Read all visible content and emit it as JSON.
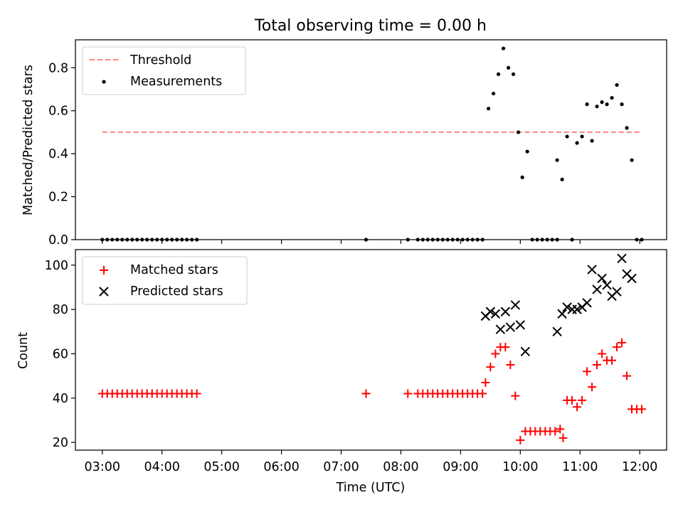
{
  "figure": {
    "title": "Total observing time = 0.00 h"
  },
  "chart_data": [
    {
      "type": "scatter",
      "panel": "top",
      "title": "Total observing time = 0.00 h",
      "xlabel": "",
      "ylabel": "Matched/Predicted stars",
      "xlim": [
        "02:33",
        "12:27"
      ],
      "ylim": [
        0,
        0.93
      ],
      "yticks": [
        0.0,
        0.2,
        0.4,
        0.6,
        0.8
      ],
      "ytick_labels": [
        "0.0",
        "0.2",
        "0.4",
        "0.6",
        "0.8"
      ],
      "xtick_labels_shown": false,
      "legend": {
        "placement": "upper-left",
        "entries": [
          "Threshold",
          "Measurements"
        ]
      },
      "threshold": {
        "name": "Threshold",
        "value": 0.5,
        "x_start": "03:00",
        "x_end": "12:00",
        "color": "#ff7f7f",
        "style": "dashed"
      },
      "series": [
        {
          "name": "Measurements",
          "marker": "dot",
          "color": "#000000",
          "points": [
            [
              "03:00",
              0
            ],
            [
              "03:05",
              0
            ],
            [
              "03:10",
              0
            ],
            [
              "03:15",
              0
            ],
            [
              "03:20",
              0
            ],
            [
              "03:25",
              0
            ],
            [
              "03:30",
              0
            ],
            [
              "03:35",
              0
            ],
            [
              "03:40",
              0
            ],
            [
              "03:45",
              0
            ],
            [
              "03:50",
              0
            ],
            [
              "03:55",
              0
            ],
            [
              "04:00",
              0
            ],
            [
              "04:05",
              0
            ],
            [
              "04:10",
              0
            ],
            [
              "04:15",
              0
            ],
            [
              "04:20",
              0
            ],
            [
              "04:25",
              0
            ],
            [
              "04:30",
              0
            ],
            [
              "04:35",
              0
            ],
            [
              "07:25",
              0
            ],
            [
              "08:07",
              0
            ],
            [
              "08:17",
              0
            ],
            [
              "08:22",
              0
            ],
            [
              "08:27",
              0
            ],
            [
              "08:32",
              0
            ],
            [
              "08:37",
              0
            ],
            [
              "08:42",
              0
            ],
            [
              "08:47",
              0
            ],
            [
              "08:52",
              0
            ],
            [
              "08:57",
              0
            ],
            [
              "09:02",
              0
            ],
            [
              "09:07",
              0
            ],
            [
              "09:12",
              0
            ],
            [
              "09:17",
              0
            ],
            [
              "09:22",
              0
            ],
            [
              "09:28",
              0.61
            ],
            [
              "09:33",
              0.68
            ],
            [
              "09:38",
              0.77
            ],
            [
              "09:43",
              0.89
            ],
            [
              "09:48",
              0.8
            ],
            [
              "09:53",
              0.77
            ],
            [
              "09:58",
              0.5
            ],
            [
              "10:02",
              0.29
            ],
            [
              "10:07",
              0.41
            ],
            [
              "10:12",
              0
            ],
            [
              "10:17",
              0
            ],
            [
              "10:22",
              0
            ],
            [
              "10:27",
              0
            ],
            [
              "10:32",
              0
            ],
            [
              "10:37",
              0
            ],
            [
              "10:37",
              0.37
            ],
            [
              "10:42",
              0.28
            ],
            [
              "10:47",
              0.48
            ],
            [
              "10:52",
              0
            ],
            [
              "10:57",
              0.45
            ],
            [
              "11:02",
              0.48
            ],
            [
              "11:07",
              0.63
            ],
            [
              "11:12",
              0.46
            ],
            [
              "11:17",
              0.62
            ],
            [
              "11:22",
              0.64
            ],
            [
              "11:27",
              0.63
            ],
            [
              "11:32",
              0.66
            ],
            [
              "11:37",
              0.72
            ],
            [
              "11:42",
              0.63
            ],
            [
              "11:47",
              0.52
            ],
            [
              "11:52",
              0.37
            ],
            [
              "11:57",
              0
            ],
            [
              "12:02",
              0
            ]
          ]
        }
      ],
      "grid": false
    },
    {
      "type": "scatter",
      "panel": "bottom",
      "xlabel": "Time (UTC)",
      "ylabel": "Count",
      "xlim": [
        "02:33",
        "12:27"
      ],
      "ylim": [
        16.5,
        107
      ],
      "yticks": [
        20,
        40,
        60,
        80,
        100
      ],
      "ytick_labels": [
        "20",
        "40",
        "60",
        "80",
        "100"
      ],
      "xticks": [
        "03:00",
        "04:00",
        "05:00",
        "06:00",
        "07:00",
        "08:00",
        "09:00",
        "10:00",
        "11:00",
        "12:00"
      ],
      "xtick_labels": [
        "03:00",
        "04:00",
        "05:00",
        "06:00",
        "07:00",
        "08:00",
        "09:00",
        "10:00",
        "11:00",
        "12:00"
      ],
      "legend": {
        "placement": "upper-left",
        "entries": [
          "Matched stars",
          "Predicted stars"
        ]
      },
      "series": [
        {
          "name": "Matched stars",
          "marker": "plus",
          "color": "#ff0000",
          "points": [
            [
              "03:00",
              42
            ],
            [
              "03:05",
              42
            ],
            [
              "03:10",
              42
            ],
            [
              "03:15",
              42
            ],
            [
              "03:20",
              42
            ],
            [
              "03:25",
              42
            ],
            [
              "03:30",
              42
            ],
            [
              "03:35",
              42
            ],
            [
              "03:40",
              42
            ],
            [
              "03:45",
              42
            ],
            [
              "03:50",
              42
            ],
            [
              "03:55",
              42
            ],
            [
              "04:00",
              42
            ],
            [
              "04:05",
              42
            ],
            [
              "04:10",
              42
            ],
            [
              "04:15",
              42
            ],
            [
              "04:20",
              42
            ],
            [
              "04:25",
              42
            ],
            [
              "04:30",
              42
            ],
            [
              "04:35",
              42
            ],
            [
              "07:25",
              42
            ],
            [
              "08:07",
              42
            ],
            [
              "08:17",
              42
            ],
            [
              "08:22",
              42
            ],
            [
              "08:27",
              42
            ],
            [
              "08:32",
              42
            ],
            [
              "08:37",
              42
            ],
            [
              "08:42",
              42
            ],
            [
              "08:47",
              42
            ],
            [
              "08:52",
              42
            ],
            [
              "08:57",
              42
            ],
            [
              "09:02",
              42
            ],
            [
              "09:07",
              42
            ],
            [
              "09:12",
              42
            ],
            [
              "09:17",
              42
            ],
            [
              "09:22",
              42
            ],
            [
              "09:25",
              47
            ],
            [
              "09:30",
              54
            ],
            [
              "09:35",
              60
            ],
            [
              "09:40",
              63
            ],
            [
              "09:45",
              63
            ],
            [
              "09:50",
              55
            ],
            [
              "09:55",
              41
            ],
            [
              "10:00",
              21
            ],
            [
              "10:05",
              25
            ],
            [
              "10:10",
              25
            ],
            [
              "10:15",
              25
            ],
            [
              "10:20",
              25
            ],
            [
              "10:25",
              25
            ],
            [
              "10:30",
              25
            ],
            [
              "10:35",
              25
            ],
            [
              "10:40",
              26
            ],
            [
              "10:43",
              22
            ],
            [
              "10:47",
              39
            ],
            [
              "10:52",
              39
            ],
            [
              "10:57",
              36
            ],
            [
              "11:02",
              39
            ],
            [
              "11:07",
              52
            ],
            [
              "11:12",
              45
            ],
            [
              "11:17",
              55
            ],
            [
              "11:22",
              60
            ],
            [
              "11:27",
              57
            ],
            [
              "11:32",
              57
            ],
            [
              "11:37",
              63
            ],
            [
              "11:42",
              65
            ],
            [
              "11:47",
              50
            ],
            [
              "11:52",
              35
            ],
            [
              "11:57",
              35
            ],
            [
              "12:02",
              35
            ]
          ]
        },
        {
          "name": "Predicted stars",
          "marker": "x",
          "color": "#000000",
          "points": [
            [
              "09:25",
              77
            ],
            [
              "09:30",
              79
            ],
            [
              "09:35",
              78
            ],
            [
              "09:40",
              71
            ],
            [
              "09:45",
              79
            ],
            [
              "09:50",
              72
            ],
            [
              "09:55",
              82
            ],
            [
              "10:00",
              73
            ],
            [
              "10:05",
              61
            ],
            [
              "10:37",
              70
            ],
            [
              "10:42",
              78
            ],
            [
              "10:47",
              81
            ],
            [
              "10:52",
              80
            ],
            [
              "10:57",
              80
            ],
            [
              "11:02",
              81
            ],
            [
              "11:07",
              83
            ],
            [
              "11:12",
              98
            ],
            [
              "11:17",
              89
            ],
            [
              "11:22",
              94
            ],
            [
              "11:27",
              91
            ],
            [
              "11:32",
              86
            ],
            [
              "11:37",
              88
            ],
            [
              "11:42",
              103
            ],
            [
              "11:47",
              96
            ],
            [
              "11:52",
              94
            ]
          ]
        }
      ],
      "grid": false
    }
  ]
}
